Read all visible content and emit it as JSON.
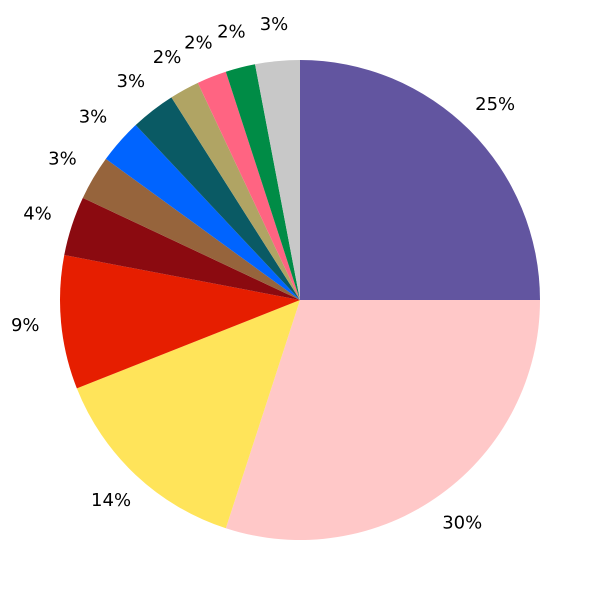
{
  "chart_data": {
    "type": "pie",
    "values": [
      25,
      30,
      14,
      9,
      4,
      3,
      3,
      3,
      2,
      2,
      2,
      3
    ],
    "value_labels": [
      "25%",
      "30%",
      "14%",
      "9%",
      "4%",
      "3%",
      "3%",
      "3%",
      "2%",
      "2%",
      "2%",
      "3%"
    ],
    "colors": [
      "#6255a0",
      "#ffc8c8",
      "#ffe45a",
      "#e61e00",
      "#8b0a10",
      "#96643c",
      "#0064ff",
      "#0a5a64",
      "#b0a464",
      "#ff6482",
      "#008c46",
      "#c8c8c8"
    ],
    "start_angle": 90,
    "direction": "clockwise"
  }
}
